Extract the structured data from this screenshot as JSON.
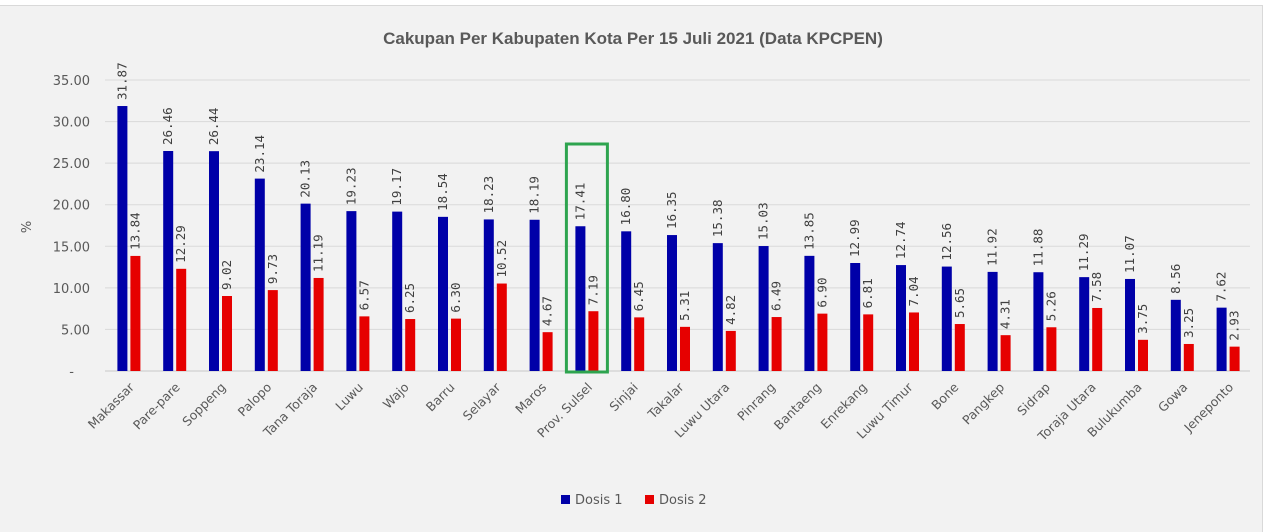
{
  "chart_data": {
    "type": "bar",
    "title": "Cakupan Per Kabupaten Kota Per 15 Juli 2021  (Data KPCPEN)",
    "xlabel": "",
    "ylabel": "%",
    "ylim": [
      0,
      35
    ],
    "yticks": [
      0,
      5,
      10,
      15,
      20,
      25,
      30,
      35
    ],
    "ytick_labels": [
      "-",
      "5.00",
      "10.00",
      "15.00",
      "20.00",
      "25.00",
      "30.00",
      "35.00"
    ],
    "grid": true,
    "legend_position": "bottom",
    "categories": [
      "Makassar",
      "Pare-pare",
      "Soppeng",
      "Palopo",
      "Tana Toraja",
      "Luwu",
      "Wajo",
      "Barru",
      "Selayar",
      "Maros",
      "Prov. Sulsel",
      "Sinjai",
      "Takalar",
      "Luwu Utara",
      "Pinrang",
      "Bantaeng",
      "Enrekang",
      "Luwu Timur",
      "Bone",
      "Pangkep",
      "Sidrap",
      "Toraja Utara",
      "Bulukumba",
      "Gowa",
      "Jeneponto"
    ],
    "series": [
      {
        "name": "Dosis 1",
        "color": "#0000a8",
        "values": [
          31.87,
          26.46,
          26.44,
          23.14,
          20.13,
          19.23,
          19.17,
          18.54,
          18.23,
          18.19,
          17.41,
          16.8,
          16.35,
          15.38,
          15.03,
          13.85,
          12.99,
          12.74,
          12.56,
          11.92,
          11.88,
          11.29,
          11.07,
          8.56,
          7.62
        ],
        "labels": [
          "31.87",
          "26.46",
          "26.44",
          "23.14",
          "20.13",
          "19.23",
          "19.17",
          "18.54",
          "18.23",
          "18.19",
          "17.41",
          "16.80",
          "16.35",
          "15.38",
          "15.03",
          "13.85",
          "12.99",
          "12.74",
          "12.56",
          "11.92",
          "11.88",
          "11.29",
          "11.07",
          "8.56",
          "7.62"
        ]
      },
      {
        "name": "Dosis 2",
        "color": "#e60000",
        "values": [
          13.84,
          12.29,
          9.02,
          9.73,
          11.19,
          6.57,
          6.25,
          6.3,
          10.52,
          4.67,
          7.19,
          6.45,
          5.31,
          4.82,
          6.49,
          6.9,
          6.81,
          7.04,
          5.65,
          4.31,
          5.26,
          7.58,
          3.75,
          3.25,
          2.93
        ],
        "labels": [
          "13.84",
          "12.29",
          "9.02",
          "9.73",
          "11.19",
          "6.57",
          "6.25",
          "6.30",
          "10.52",
          "4.67",
          "7.19",
          "6.45",
          "5.31",
          "4.82",
          "6.49",
          "6.90",
          "6.81",
          "7.04",
          "5.65",
          "4.31",
          "5.26",
          "7.58",
          "3.75",
          "3.25",
          "2.93"
        ]
      }
    ],
    "highlight": {
      "category": "Prov. Sulsel",
      "color": "#2ea44f"
    }
  }
}
